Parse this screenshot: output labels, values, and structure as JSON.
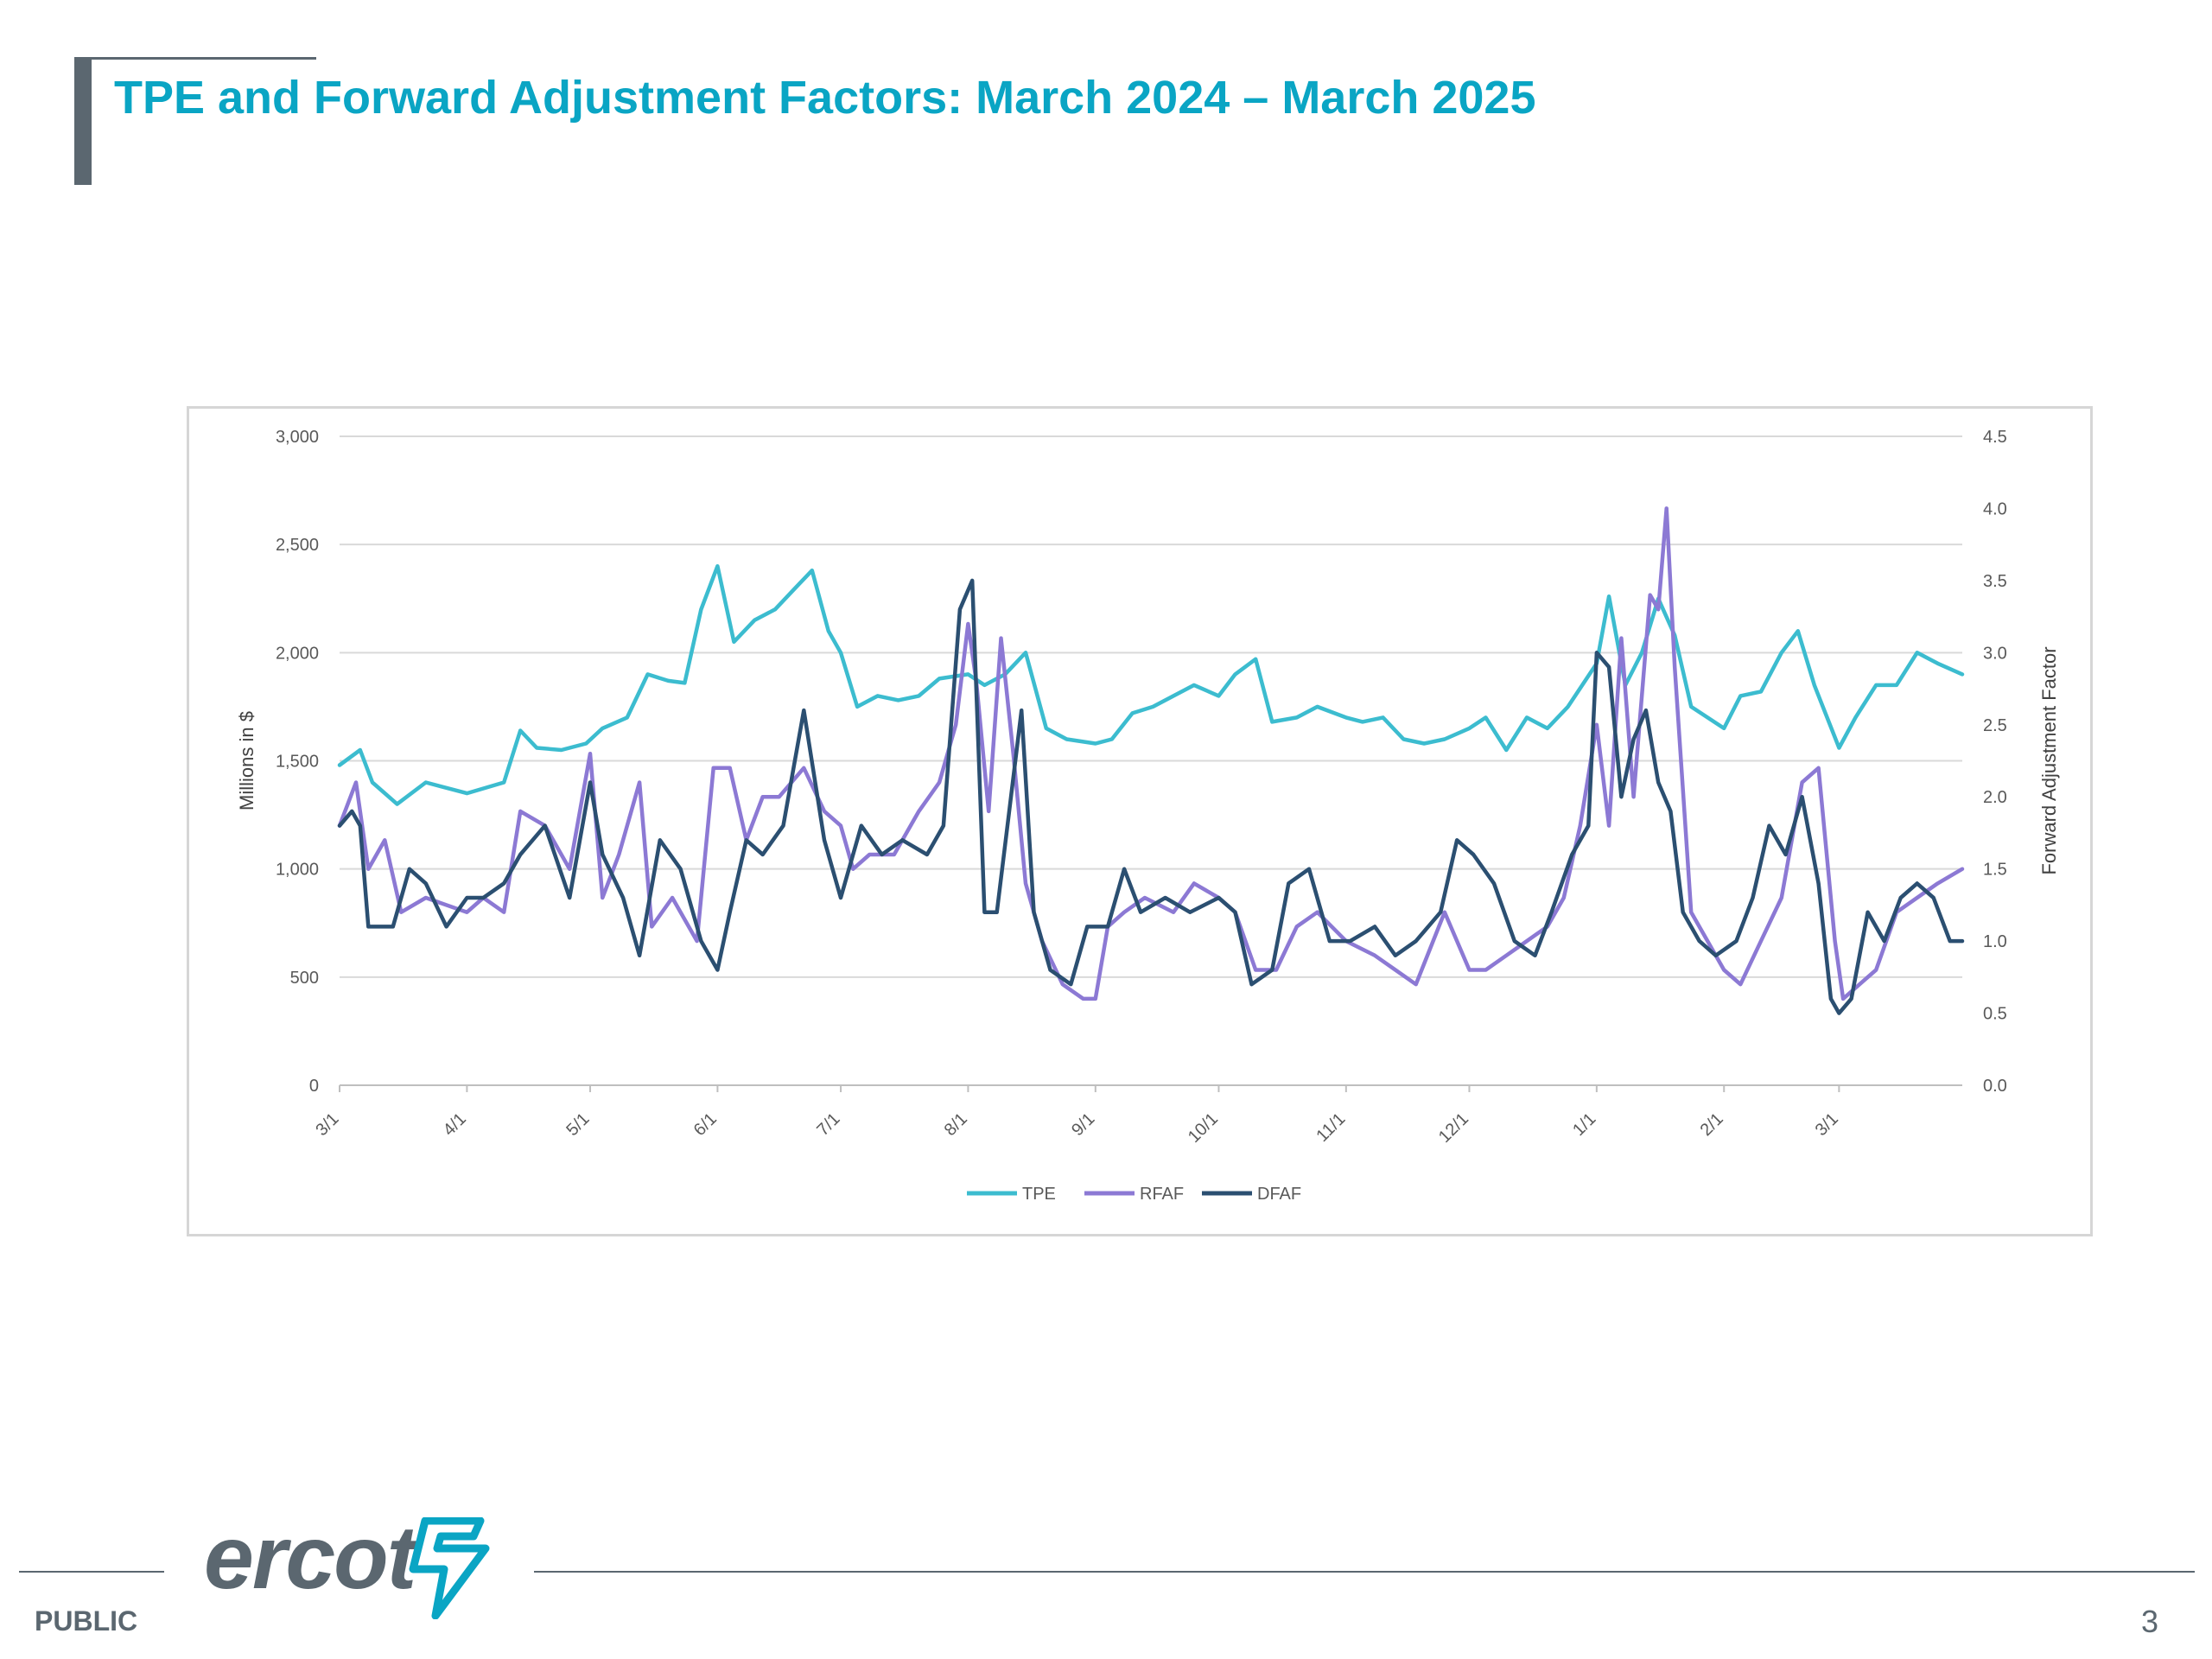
{
  "slide": {
    "title": "TPE and Forward Adjustment Factors: March 2024 – March 2025",
    "footer_label": "PUBLIC",
    "page_number": "3",
    "logo_text": "ercot"
  },
  "colors": {
    "title": "#0aa5c4",
    "tpe": "#3cbccf",
    "rfaf": "#8c79d4",
    "dfaf": "#2b4f71",
    "gray": "#5b6770"
  },
  "chart_data": {
    "type": "line",
    "x_ticks": [
      "3/1",
      "4/1",
      "5/1",
      "6/1",
      "7/1",
      "8/1",
      "9/1",
      "10/1",
      "11/1",
      "12/1",
      "1/1",
      "2/1",
      "3/1"
    ],
    "x_range": [
      "3/1",
      "3/31"
    ],
    "ylabel": "Millions in $",
    "ylabel_right": "Forward Adjustment Factor",
    "y_ticks": [
      "0",
      "500",
      "1,000",
      "1,500",
      "2,000",
      "2,500",
      "3,000"
    ],
    "y_right_ticks": [
      "0.0",
      "0.5",
      "1.0",
      "1.5",
      "2.0",
      "2.5",
      "3.0",
      "3.5",
      "4.0",
      "4.5"
    ],
    "ylim": [
      0,
      3000
    ],
    "ylim_right": [
      0,
      4.5
    ],
    "grid": true,
    "legend_position": "bottom",
    "series": [
      {
        "name": "TPE",
        "axis": "left",
        "color": "#3cbccf",
        "points": [
          [
            "3/1",
            1480
          ],
          [
            "3/6",
            1550
          ],
          [
            "3/9",
            1400
          ],
          [
            "3/15",
            1300
          ],
          [
            "3/22",
            1400
          ],
          [
            "4/1",
            1350
          ],
          [
            "4/10",
            1400
          ],
          [
            "4/14",
            1640
          ],
          [
            "4/18",
            1560
          ],
          [
            "4/24",
            1550
          ],
          [
            "4/30",
            1580
          ],
          [
            "5/4",
            1650
          ],
          [
            "5/10",
            1700
          ],
          [
            "5/15",
            1900
          ],
          [
            "5/20",
            1870
          ],
          [
            "5/24",
            1860
          ],
          [
            "5/28",
            2200
          ],
          [
            "6/1",
            2400
          ],
          [
            "6/5",
            2050
          ],
          [
            "6/10",
            2150
          ],
          [
            "6/15",
            2200
          ],
          [
            "6/20",
            2300
          ],
          [
            "6/24",
            2380
          ],
          [
            "6/28",
            2100
          ],
          [
            "7/1",
            2000
          ],
          [
            "7/5",
            1750
          ],
          [
            "7/10",
            1800
          ],
          [
            "7/15",
            1780
          ],
          [
            "7/20",
            1800
          ],
          [
            "7/25",
            1880
          ],
          [
            "8/1",
            1900
          ],
          [
            "8/5",
            1850
          ],
          [
            "8/10",
            1900
          ],
          [
            "8/15",
            2000
          ],
          [
            "8/20",
            1650
          ],
          [
            "8/25",
            1600
          ],
          [
            "9/1",
            1580
          ],
          [
            "9/5",
            1600
          ],
          [
            "9/10",
            1720
          ],
          [
            "9/15",
            1750
          ],
          [
            "9/20",
            1800
          ],
          [
            "9/25",
            1850
          ],
          [
            "10/1",
            1800
          ],
          [
            "10/5",
            1900
          ],
          [
            "10/10",
            1970
          ],
          [
            "10/14",
            1680
          ],
          [
            "10/20",
            1700
          ],
          [
            "10/25",
            1750
          ],
          [
            "11/1",
            1700
          ],
          [
            "11/5",
            1680
          ],
          [
            "11/10",
            1700
          ],
          [
            "11/15",
            1600
          ],
          [
            "11/20",
            1580
          ],
          [
            "11/25",
            1600
          ],
          [
            "12/1",
            1650
          ],
          [
            "12/5",
            1700
          ],
          [
            "12/10",
            1550
          ],
          [
            "12/15",
            1700
          ],
          [
            "12/20",
            1650
          ],
          [
            "12/25",
            1750
          ],
          [
            "1/1",
            1950
          ],
          [
            "1/4",
            2260
          ],
          [
            "1/8",
            1850
          ],
          [
            "1/12",
            2000
          ],
          [
            "1/16",
            2250
          ],
          [
            "1/20",
            2080
          ],
          [
            "1/24",
            1750
          ],
          [
            "1/28",
            1700
          ],
          [
            "2/1",
            1650
          ],
          [
            "2/5",
            1800
          ],
          [
            "2/10",
            1820
          ],
          [
            "2/15",
            2000
          ],
          [
            "2/19",
            2100
          ],
          [
            "2/23",
            1850
          ],
          [
            "3/1",
            1560
          ],
          [
            "3/5",
            1700
          ],
          [
            "3/10",
            1850
          ],
          [
            "3/15",
            1850
          ],
          [
            "3/20",
            2000
          ],
          [
            "3/25",
            1950
          ],
          [
            "3/31",
            1900
          ]
        ]
      },
      {
        "name": "RFAF",
        "axis": "right",
        "color": "#8c79d4",
        "points": [
          [
            "3/1",
            1.8
          ],
          [
            "3/5",
            2.1
          ],
          [
            "3/8",
            1.5
          ],
          [
            "3/12",
            1.7
          ],
          [
            "3/16",
            1.2
          ],
          [
            "3/22",
            1.3
          ],
          [
            "4/1",
            1.2
          ],
          [
            "4/5",
            1.3
          ],
          [
            "4/10",
            1.2
          ],
          [
            "4/14",
            1.9
          ],
          [
            "4/20",
            1.8
          ],
          [
            "4/26",
            1.5
          ],
          [
            "5/1",
            2.3
          ],
          [
            "5/4",
            1.3
          ],
          [
            "5/8",
            1.6
          ],
          [
            "5/13",
            2.1
          ],
          [
            "5/16",
            1.1
          ],
          [
            "5/21",
            1.3
          ],
          [
            "5/27",
            1.0
          ],
          [
            "5/31",
            2.2
          ],
          [
            "6/4",
            2.2
          ],
          [
            "6/8",
            1.7
          ],
          [
            "6/12",
            2.0
          ],
          [
            "6/16",
            2.0
          ],
          [
            "6/22",
            2.2
          ],
          [
            "6/27",
            1.9
          ],
          [
            "7/1",
            1.8
          ],
          [
            "7/4",
            1.5
          ],
          [
            "7/8",
            1.6
          ],
          [
            "7/14",
            1.6
          ],
          [
            "7/20",
            1.9
          ],
          [
            "7/25",
            2.1
          ],
          [
            "7/29",
            2.5
          ],
          [
            "8/1",
            3.2
          ],
          [
            "8/3",
            2.8
          ],
          [
            "8/6",
            1.9
          ],
          [
            "8/9",
            3.1
          ],
          [
            "8/12",
            2.3
          ],
          [
            "8/15",
            1.4
          ],
          [
            "8/19",
            1.0
          ],
          [
            "8/24",
            0.7
          ],
          [
            "8/29",
            0.6
          ],
          [
            "9/1",
            0.6
          ],
          [
            "9/4",
            1.1
          ],
          [
            "9/8",
            1.2
          ],
          [
            "9/13",
            1.3
          ],
          [
            "9/20",
            1.2
          ],
          [
            "9/25",
            1.4
          ],
          [
            "10/1",
            1.3
          ],
          [
            "10/5",
            1.2
          ],
          [
            "10/10",
            0.8
          ],
          [
            "10/15",
            0.8
          ],
          [
            "10/20",
            1.1
          ],
          [
            "10/25",
            1.2
          ],
          [
            "11/1",
            1.0
          ],
          [
            "11/8",
            0.9
          ],
          [
            "11/13",
            0.8
          ],
          [
            "11/18",
            0.7
          ],
          [
            "11/25",
            1.2
          ],
          [
            "12/1",
            0.8
          ],
          [
            "12/5",
            0.8
          ],
          [
            "12/10",
            0.9
          ],
          [
            "12/15",
            1.0
          ],
          [
            "12/20",
            1.1
          ],
          [
            "12/24",
            1.3
          ],
          [
            "12/28",
            1.8
          ],
          [
            "1/1",
            2.5
          ],
          [
            "1/4",
            1.8
          ],
          [
            "1/7",
            3.1
          ],
          [
            "1/10",
            2.0
          ],
          [
            "1/14",
            3.4
          ],
          [
            "1/16",
            3.3
          ],
          [
            "1/18",
            4.0
          ],
          [
            "1/20",
            2.9
          ],
          [
            "1/24",
            1.2
          ],
          [
            "1/28",
            1.0
          ],
          [
            "2/1",
            0.8
          ],
          [
            "2/5",
            0.7
          ],
          [
            "2/10",
            1.0
          ],
          [
            "2/15",
            1.3
          ],
          [
            "2/20",
            2.1
          ],
          [
            "2/24",
            2.2
          ],
          [
            "2/28",
            1.0
          ],
          [
            "3/2",
            0.6
          ],
          [
            "3/6",
            0.7
          ],
          [
            "3/10",
            0.8
          ],
          [
            "3/15",
            1.2
          ],
          [
            "3/20",
            1.3
          ],
          [
            "3/25",
            1.4
          ],
          [
            "3/31",
            1.5
          ]
        ]
      },
      {
        "name": "DFAF",
        "axis": "right",
        "color": "#2b4f71",
        "points": [
          [
            "3/1",
            1.8
          ],
          [
            "3/4",
            1.9
          ],
          [
            "3/6",
            1.8
          ],
          [
            "3/8",
            1.1
          ],
          [
            "3/14",
            1.1
          ],
          [
            "3/18",
            1.5
          ],
          [
            "3/22",
            1.4
          ],
          [
            "3/27",
            1.1
          ],
          [
            "4/1",
            1.3
          ],
          [
            "4/5",
            1.3
          ],
          [
            "4/10",
            1.4
          ],
          [
            "4/14",
            1.6
          ],
          [
            "4/20",
            1.8
          ],
          [
            "4/26",
            1.3
          ],
          [
            "5/1",
            2.1
          ],
          [
            "5/4",
            1.6
          ],
          [
            "5/9",
            1.3
          ],
          [
            "5/13",
            0.9
          ],
          [
            "5/18",
            1.7
          ],
          [
            "5/23",
            1.5
          ],
          [
            "5/28",
            1.0
          ],
          [
            "6/1",
            0.8
          ],
          [
            "6/4",
            1.2
          ],
          [
            "6/8",
            1.7
          ],
          [
            "6/12",
            1.6
          ],
          [
            "6/17",
            1.8
          ],
          [
            "6/22",
            2.6
          ],
          [
            "6/27",
            1.7
          ],
          [
            "7/1",
            1.3
          ],
          [
            "7/6",
            1.8
          ],
          [
            "7/11",
            1.6
          ],
          [
            "7/16",
            1.7
          ],
          [
            "7/22",
            1.6
          ],
          [
            "7/26",
            1.8
          ],
          [
            "7/30",
            3.3
          ],
          [
            "8/2",
            3.5
          ],
          [
            "8/5",
            1.2
          ],
          [
            "8/8",
            1.2
          ],
          [
            "8/11",
            1.9
          ],
          [
            "8/14",
            2.6
          ],
          [
            "8/17",
            1.2
          ],
          [
            "8/21",
            0.8
          ],
          [
            "8/26",
            0.7
          ],
          [
            "8/30",
            1.1
          ],
          [
            "9/4",
            1.1
          ],
          [
            "9/8",
            1.5
          ],
          [
            "9/12",
            1.2
          ],
          [
            "9/18",
            1.3
          ],
          [
            "9/24",
            1.2
          ],
          [
            "10/1",
            1.3
          ],
          [
            "10/5",
            1.2
          ],
          [
            "10/9",
            0.7
          ],
          [
            "10/14",
            0.8
          ],
          [
            "10/18",
            1.4
          ],
          [
            "10/23",
            1.5
          ],
          [
            "10/28",
            1.0
          ],
          [
            "11/2",
            1.0
          ],
          [
            "11/8",
            1.1
          ],
          [
            "11/13",
            0.9
          ],
          [
            "11/18",
            1.0
          ],
          [
            "11/24",
            1.2
          ],
          [
            "11/28",
            1.7
          ],
          [
            "12/2",
            1.6
          ],
          [
            "12/7",
            1.4
          ],
          [
            "12/12",
            1.0
          ],
          [
            "12/17",
            0.9
          ],
          [
            "12/21",
            1.2
          ],
          [
            "12/26",
            1.6
          ],
          [
            "12/30",
            1.8
          ],
          [
            "1/1",
            3.0
          ],
          [
            "1/4",
            2.9
          ],
          [
            "1/7",
            2.0
          ],
          [
            "1/10",
            2.4
          ],
          [
            "1/13",
            2.6
          ],
          [
            "1/16",
            2.1
          ],
          [
            "1/19",
            1.9
          ],
          [
            "1/22",
            1.2
          ],
          [
            "1/26",
            1.0
          ],
          [
            "1/30",
            0.9
          ],
          [
            "2/4",
            1.0
          ],
          [
            "2/8",
            1.3
          ],
          [
            "2/12",
            1.8
          ],
          [
            "2/16",
            1.6
          ],
          [
            "2/20",
            2.0
          ],
          [
            "2/24",
            1.4
          ],
          [
            "2/27",
            0.6
          ],
          [
            "3/1",
            0.5
          ],
          [
            "3/4",
            0.6
          ],
          [
            "3/8",
            1.2
          ],
          [
            "3/12",
            1.0
          ],
          [
            "3/16",
            1.3
          ],
          [
            "3/20",
            1.4
          ],
          [
            "3/24",
            1.3
          ],
          [
            "3/28",
            1.0
          ],
          [
            "3/31",
            1.0
          ]
        ]
      }
    ]
  }
}
